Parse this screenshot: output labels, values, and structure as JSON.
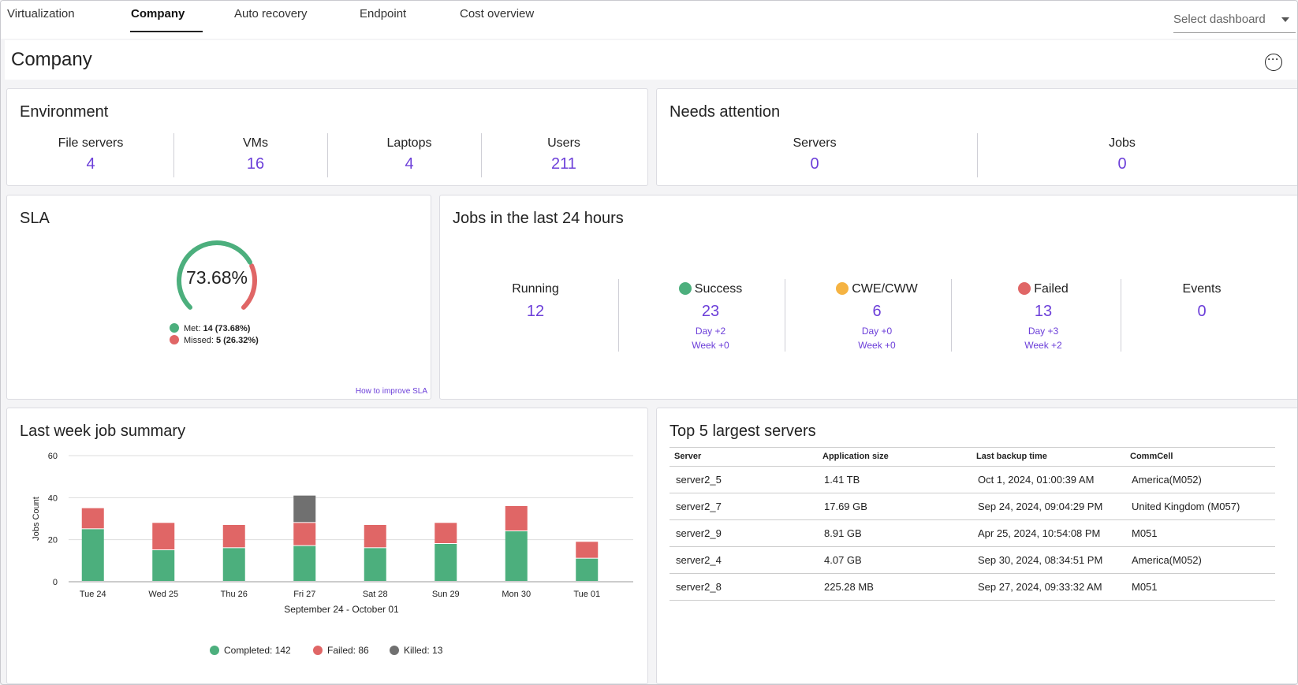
{
  "tabs": [
    {
      "label": "Virtualization",
      "active": false
    },
    {
      "label": "Company",
      "active": true
    },
    {
      "label": "Auto recovery",
      "active": false
    },
    {
      "label": "Endpoint",
      "active": false
    },
    {
      "label": "Cost overview",
      "active": false
    }
  ],
  "select_dashboard": {
    "placeholder": "Select dashboard"
  },
  "page": {
    "title": "Company",
    "more_icon": "ellipsis-circle-icon"
  },
  "environment": {
    "title": "Environment",
    "stats": [
      {
        "label": "File servers",
        "value": "4"
      },
      {
        "label": "VMs",
        "value": "16"
      },
      {
        "label": "Laptops",
        "value": "4"
      },
      {
        "label": "Users",
        "value": "211"
      }
    ]
  },
  "needs_attention": {
    "title": "Needs attention",
    "stats": [
      {
        "label": "Servers",
        "value": "0"
      },
      {
        "label": "Jobs",
        "value": "0"
      }
    ]
  },
  "sla": {
    "title": "SLA",
    "percent_label": "73.68%",
    "met_fraction": 0.7368,
    "met_label": "Met:",
    "met_value": "14 (73.68%)",
    "missed_label": "Missed:",
    "missed_value": "5 (26.32%)",
    "improve_link": "How to improve SLA",
    "colors": {
      "met": "#4caf7d",
      "missed": "#e06666"
    }
  },
  "jobs24": {
    "title": "Jobs in the last 24 hours",
    "items": [
      {
        "label": "Running",
        "value": "12",
        "dot": null,
        "day": "",
        "week": ""
      },
      {
        "label": "Success",
        "value": "23",
        "dot": "#4caf7d",
        "day": "Day +2",
        "week": "Week +0"
      },
      {
        "label": "CWE/CWW",
        "value": "6",
        "dot": "#f5b342",
        "day": "Day +0",
        "week": "Week +0"
      },
      {
        "label": "Failed",
        "value": "13",
        "dot": "#e06666",
        "day": "Day +3",
        "week": "Week +2"
      },
      {
        "label": "Events",
        "value": "0",
        "dot": null,
        "day": "",
        "week": ""
      }
    ]
  },
  "last_week": {
    "title": "Last week job summary",
    "legend": [
      {
        "label": "Completed: 142",
        "color": "#4caf7d"
      },
      {
        "label": "Failed: 86",
        "color": "#e06666"
      },
      {
        "label": "Killed: 13",
        "color": "#707070"
      }
    ]
  },
  "chart_data": {
    "type": "bar",
    "stacked": true,
    "categories": [
      "Tue 24",
      "Wed 25",
      "Thu 26",
      "Fri 27",
      "Sat 28",
      "Sun 29",
      "Mon 30",
      "Tue 01"
    ],
    "series": [
      {
        "name": "Completed",
        "color": "#4caf7d",
        "values": [
          25,
          15,
          16,
          17,
          16,
          18,
          24,
          11
        ]
      },
      {
        "name": "Failed",
        "color": "#e06666",
        "values": [
          10,
          13,
          11,
          11,
          11,
          10,
          12,
          8
        ]
      },
      {
        "name": "Killed",
        "color": "#707070",
        "values": [
          0,
          0,
          0,
          13,
          0,
          0,
          0,
          0
        ]
      }
    ],
    "xlabel": "September 24 - October 01",
    "ylabel": "Jobs Count",
    "ylim": [
      0,
      60
    ],
    "yticks": [
      0,
      20,
      40,
      60
    ],
    "grid": true
  },
  "top_servers": {
    "title": "Top 5 largest servers",
    "columns": [
      "Server",
      "Application size",
      "Last backup time",
      "CommCell"
    ],
    "rows": [
      [
        "server2_5",
        "1.41 TB",
        "Oct 1, 2024, 01:00:39 AM",
        "America(M052)"
      ],
      [
        "server2_7",
        "17.69 GB",
        "Sep 24, 2024, 09:04:29 PM",
        "United Kingdom (M057)"
      ],
      [
        "server2_9",
        "8.91 GB",
        "Apr 25, 2024, 10:54:08 PM",
        "M051"
      ],
      [
        "server2_4",
        "4.07 GB",
        "Sep 30, 2024, 08:34:51 PM",
        "America(M052)"
      ],
      [
        "server2_8",
        "225.28 MB",
        "Sep 27, 2024, 09:33:32 AM",
        "M051"
      ]
    ]
  }
}
